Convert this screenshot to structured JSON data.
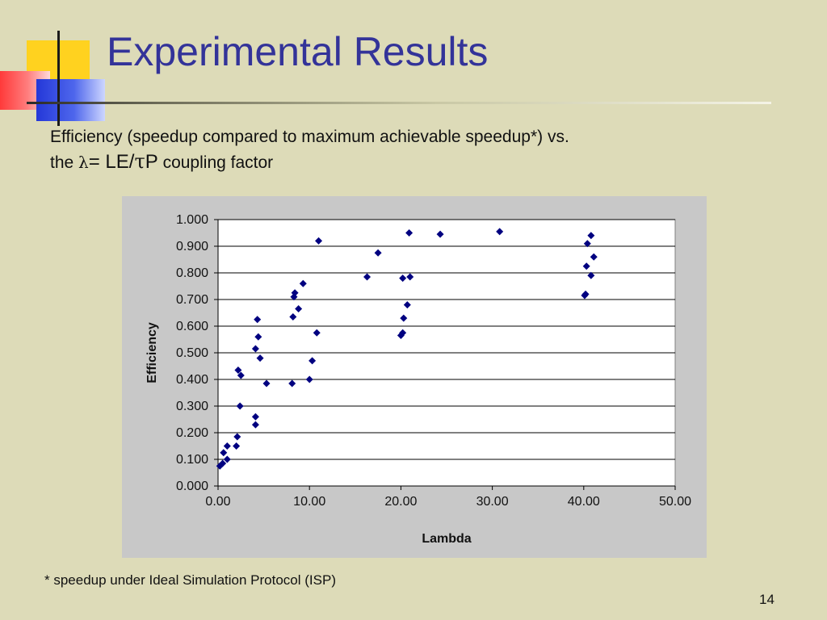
{
  "slide": {
    "title": "Experimental Results",
    "subtitle_line1": "Efficiency (speedup compared to maximum achievable speedup*) vs.",
    "subtitle_line2_prefix": "the ",
    "lambda_symbol": "λ",
    "equals": "= ",
    "le": "LE/",
    "tau_symbol": "τ",
    "p": "P",
    "subtitle_line2_suffix": " coupling factor",
    "footnote": "* speedup under Ideal Simulation Protocol (ISP)",
    "page_number": "14"
  },
  "colors": {
    "background": "#dddbb8",
    "title": "#333399",
    "chart_panel": "#c8c8c8",
    "plot_area": "#ffffff",
    "marker": "#000080"
  },
  "chart_data": {
    "type": "scatter",
    "xlabel": "Lambda",
    "ylabel": "Efficiency",
    "xlim": [
      0,
      50
    ],
    "ylim": [
      0,
      1
    ],
    "x_ticks": [
      "0.00",
      "10.00",
      "20.00",
      "30.00",
      "40.00",
      "50.00"
    ],
    "y_ticks": [
      "0.000",
      "0.100",
      "0.200",
      "0.300",
      "0.400",
      "0.500",
      "0.600",
      "0.700",
      "0.800",
      "0.900",
      "1.000"
    ],
    "horizontal_grid": true,
    "vertical_grid": false,
    "legend": "none",
    "marker": "diamond",
    "points": [
      [
        0.2,
        0.075
      ],
      [
        0.5,
        0.085
      ],
      [
        0.6,
        0.125
      ],
      [
        1.0,
        0.15
      ],
      [
        1.0,
        0.1
      ],
      [
        2.0,
        0.15
      ],
      [
        2.1,
        0.185
      ],
      [
        2.2,
        0.435
      ],
      [
        2.4,
        0.3
      ],
      [
        2.5,
        0.415
      ],
      [
        4.1,
        0.26
      ],
      [
        4.1,
        0.23
      ],
      [
        4.1,
        0.515
      ],
      [
        4.3,
        0.625
      ],
      [
        4.4,
        0.56
      ],
      [
        4.6,
        0.48
      ],
      [
        5.3,
        0.385
      ],
      [
        8.1,
        0.385
      ],
      [
        8.2,
        0.635
      ],
      [
        8.3,
        0.71
      ],
      [
        8.4,
        0.725
      ],
      [
        8.8,
        0.665
      ],
      [
        9.3,
        0.76
      ],
      [
        10.0,
        0.4
      ],
      [
        10.3,
        0.47
      ],
      [
        10.8,
        0.575
      ],
      [
        11.0,
        0.92
      ],
      [
        16.3,
        0.785
      ],
      [
        17.5,
        0.875
      ],
      [
        20.0,
        0.565
      ],
      [
        20.2,
        0.575
      ],
      [
        20.2,
        0.78
      ],
      [
        20.3,
        0.63
      ],
      [
        20.7,
        0.68
      ],
      [
        20.9,
        0.95
      ],
      [
        21.0,
        0.785
      ],
      [
        24.3,
        0.945
      ],
      [
        30.8,
        0.955
      ],
      [
        40.1,
        0.715
      ],
      [
        40.2,
        0.72
      ],
      [
        40.3,
        0.825
      ],
      [
        40.4,
        0.91
      ],
      [
        40.8,
        0.94
      ],
      [
        40.8,
        0.79
      ],
      [
        41.1,
        0.86
      ]
    ]
  }
}
